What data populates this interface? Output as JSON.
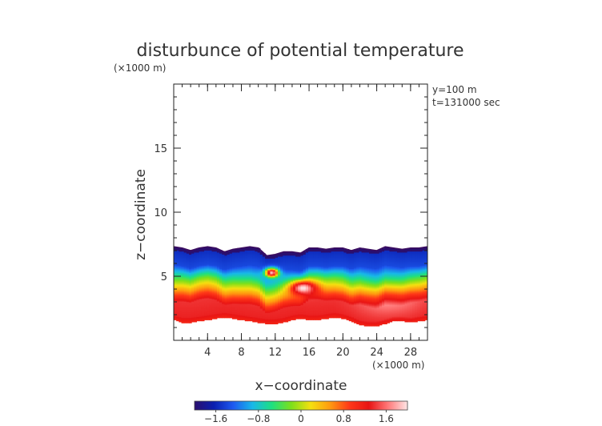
{
  "chart_data": {
    "type": "heatmap",
    "title": "disturbunce of potential temperature",
    "xlabel": "x−coordinate",
    "ylabel": "z−coordinate",
    "x_unit": "(×1000 m)",
    "z_unit": "(×1000 m)",
    "annotations": [
      "y=100 m",
      "t=131000 sec"
    ],
    "xlim": [
      0,
      30
    ],
    "zlim": [
      0,
      20
    ],
    "x_ticks": [
      4,
      8,
      12,
      16,
      20,
      24,
      28
    ],
    "z_ticks": [
      5,
      10,
      15
    ],
    "colorbar": {
      "min": -2.0,
      "max": 2.0,
      "ticks": [
        -1.6,
        -0.8,
        0,
        0.8,
        1.6
      ],
      "colors": [
        "#2b0f6e",
        "#0a1fb0",
        "#1e5af0",
        "#18b8e8",
        "#1ee080",
        "#7de01a",
        "#f5e010",
        "#ff9a10",
        "#ff3818",
        "#e81414",
        "#ff7a7a",
        "#ffe6e6"
      ]
    },
    "layer": {
      "top_z": [
        7.3,
        7.2,
        7.0,
        7.2,
        7.3,
        7.2,
        6.9,
        7.1,
        7.2,
        7.3,
        7.2,
        6.6,
        6.7,
        6.9,
        6.9,
        6.8,
        7.2,
        7.2,
        7.1,
        7.2,
        7.2,
        7.0,
        7.2,
        7.1,
        7.0,
        7.3,
        7.2,
        7.1,
        7.2,
        7.2,
        7.3
      ],
      "bottom_z": [
        1.6,
        1.4,
        1.4,
        1.5,
        1.6,
        1.7,
        1.8,
        1.7,
        1.6,
        1.5,
        1.4,
        1.3,
        1.3,
        1.4,
        1.6,
        1.7,
        1.6,
        1.6,
        1.7,
        1.8,
        1.7,
        1.5,
        1.2,
        1.1,
        1.1,
        1.3,
        1.5,
        1.5,
        1.4,
        1.5,
        1.6
      ]
    }
  }
}
